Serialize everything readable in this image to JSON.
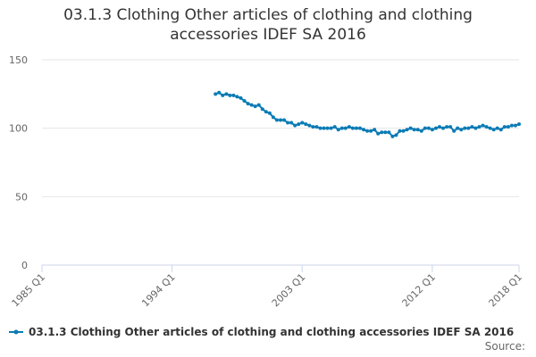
{
  "chart_data": {
    "type": "line",
    "title": "03.1.3 Clothing Other articles of clothing and clothing accessories IDEF SA 2016",
    "categories": [
      "1985 Q1",
      null,
      null,
      null,
      null,
      null,
      null,
      null,
      null,
      null,
      null,
      null,
      null,
      null,
      null,
      null,
      null,
      null,
      null,
      null,
      null,
      null,
      null,
      null,
      null,
      null,
      null,
      null,
      null,
      null,
      null,
      null,
      null,
      null,
      null,
      null,
      "1994 Q1",
      null,
      null,
      null,
      null,
      null,
      null,
      null,
      null,
      null,
      null,
      null,
      null,
      null,
      null,
      null,
      null,
      null,
      null,
      null,
      null,
      null,
      null,
      null,
      null,
      null,
      null,
      null,
      null,
      null,
      null,
      null,
      null,
      null,
      null,
      null,
      "2003 Q1",
      null,
      null,
      null,
      null,
      null,
      null,
      null,
      null,
      null,
      null,
      null,
      null,
      null,
      null,
      null,
      null,
      null,
      null,
      null,
      null,
      null,
      null,
      null,
      null,
      null,
      null,
      null,
      null,
      null,
      null,
      null,
      null,
      null,
      null,
      null,
      "2012 Q1",
      null,
      null,
      null,
      null,
      null,
      null,
      null,
      null,
      null,
      null,
      null,
      null,
      null,
      null,
      null,
      null,
      null,
      null,
      null,
      null,
      null,
      null,
      null,
      "2018 Q1"
    ],
    "series": [
      {
        "name": "03.1.3 Clothing Other articles of clothing and clothing accessories IDEF SA 2016",
        "color": "#0b7bb5",
        "values": [
          null,
          null,
          null,
          null,
          null,
          null,
          null,
          null,
          null,
          null,
          null,
          null,
          null,
          null,
          null,
          null,
          null,
          null,
          null,
          null,
          null,
          null,
          null,
          null,
          null,
          null,
          null,
          null,
          null,
          null,
          null,
          null,
          null,
          null,
          null,
          null,
          null,
          null,
          null,
          null,
          null,
          null,
          null,
          null,
          null,
          null,
          null,
          null,
          125,
          126,
          124,
          125,
          124,
          124,
          123,
          122,
          120,
          118,
          117,
          116,
          117,
          114,
          112,
          111,
          108,
          106,
          106,
          106,
          104,
          104,
          102,
          103,
          104,
          103,
          102,
          101,
          101,
          100,
          100,
          100,
          100,
          101,
          99,
          100,
          100,
          101,
          100,
          100,
          100,
          99,
          98,
          98,
          99,
          96,
          97,
          97,
          97,
          94,
          95,
          98,
          98,
          99,
          100,
          99,
          99,
          98,
          100,
          100,
          99,
          100,
          101,
          100,
          101,
          101,
          98,
          100,
          99,
          100,
          100,
          101,
          100,
          101,
          102,
          101,
          100,
          99,
          100,
          99,
          101,
          101,
          102,
          102,
          103
        ]
      }
    ],
    "ylim": [
      0,
      150
    ],
    "yticks": [
      0,
      50,
      100,
      150
    ],
    "grid": true,
    "source": "Source:"
  }
}
